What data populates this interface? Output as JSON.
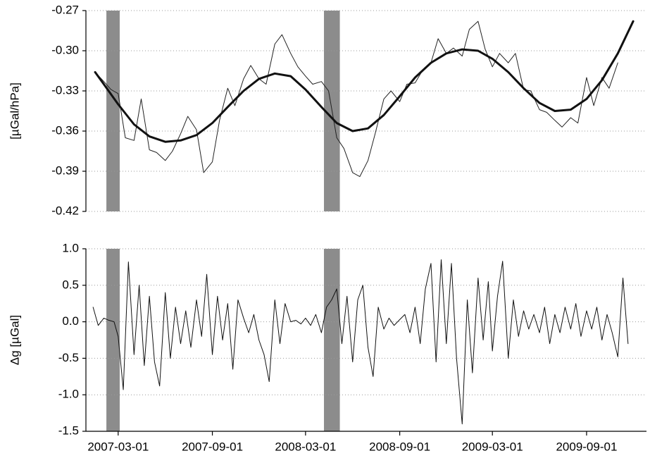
{
  "chart_data": [
    {
      "type": "line",
      "ylabel": "[µGal/hPa]",
      "xlim": [
        "2006-12-28",
        "2009-12-27"
      ],
      "ylim": [
        -0.42,
        -0.27
      ],
      "yticks": [
        -0.42,
        -0.39,
        -0.36,
        -0.33,
        {
          "value": -0.3,
          "label": "-0.30"
        },
        -0.27
      ],
      "grid": true,
      "shade_color": "#8c8c8c",
      "shaded_periods": [
        [
          "2007-02-06",
          "2007-03-04"
        ],
        [
          "2008-04-06",
          "2008-05-07"
        ]
      ],
      "series": [
        {
          "color": "#222222",
          "width": 1,
          "x": [
            "2007-01-15",
            "2007-02-01",
            "2007-02-15",
            "2007-03-01",
            "2007-03-15",
            "2007-04-01",
            "2007-04-15",
            "2007-05-01",
            "2007-05-15",
            "2007-06-01",
            "2007-06-15",
            "2007-07-01",
            "2007-07-15",
            "2007-08-01",
            "2007-08-15",
            "2007-09-01",
            "2007-09-15",
            "2007-10-01",
            "2007-10-15",
            "2007-11-01",
            "2007-11-15",
            "2007-12-01",
            "2007-12-15",
            "2008-01-01",
            "2008-01-15",
            "2008-02-01",
            "2008-02-15",
            "2008-03-01",
            "2008-03-15",
            "2008-04-01",
            "2008-04-15",
            "2008-05-01",
            "2008-05-15",
            "2008-06-01",
            "2008-06-15",
            "2008-07-01",
            "2008-07-15",
            "2008-08-01",
            "2008-08-15",
            "2008-09-01",
            "2008-09-15",
            "2008-10-01",
            "2008-10-15",
            "2008-11-01",
            "2008-11-15",
            "2008-12-01",
            "2008-12-15",
            "2009-01-01",
            "2009-01-15",
            "2009-02-01",
            "2009-02-15",
            "2009-03-01",
            "2009-03-15",
            "2009-04-01",
            "2009-04-15",
            "2009-05-01",
            "2009-05-15",
            "2009-06-01",
            "2009-06-15",
            "2009-07-01",
            "2009-07-15",
            "2009-08-01",
            "2009-08-15",
            "2009-09-01",
            "2009-09-15",
            "2009-10-01",
            "2009-10-15",
            "2009-11-01"
          ],
          "values": [
            -0.316,
            -0.323,
            -0.329,
            -0.332,
            -0.365,
            -0.367,
            -0.336,
            -0.374,
            -0.376,
            -0.382,
            -0.375,
            -0.362,
            -0.349,
            -0.359,
            -0.391,
            -0.383,
            -0.352,
            -0.328,
            -0.341,
            -0.321,
            -0.311,
            -0.321,
            -0.325,
            -0.295,
            -0.288,
            -0.302,
            -0.312,
            -0.319,
            -0.325,
            -0.323,
            -0.33,
            -0.365,
            -0.373,
            -0.391,
            -0.394,
            -0.382,
            -0.362,
            -0.336,
            -0.33,
            -0.338,
            -0.325,
            -0.324,
            -0.315,
            -0.309,
            -0.291,
            -0.302,
            -0.298,
            -0.304,
            -0.284,
            -0.278,
            -0.299,
            -0.312,
            -0.302,
            -0.309,
            -0.302,
            -0.329,
            -0.33,
            -0.344,
            -0.346,
            -0.352,
            -0.357,
            -0.35,
            -0.354,
            -0.32,
            -0.341,
            -0.32,
            -0.328,
            -0.309
          ]
        },
        {
          "color": "#111111",
          "width": 3,
          "x": [
            "2007-01-15",
            "2007-02-01",
            "2007-03-01",
            "2007-04-01",
            "2007-05-01",
            "2007-06-01",
            "2007-07-01",
            "2007-08-01",
            "2007-09-01",
            "2007-10-01",
            "2007-11-01",
            "2007-12-01",
            "2008-01-01",
            "2008-02-01",
            "2008-03-01",
            "2008-04-01",
            "2008-05-01",
            "2008-06-01",
            "2008-07-01",
            "2008-08-01",
            "2008-09-01",
            "2008-10-01",
            "2008-11-01",
            "2008-12-01",
            "2009-01-01",
            "2009-02-01",
            "2009-03-01",
            "2009-04-01",
            "2009-05-01",
            "2009-06-01",
            "2009-07-01",
            "2009-08-01",
            "2009-09-01",
            "2009-10-01",
            "2009-11-01",
            "2009-12-01"
          ],
          "values": [
            -0.316,
            -0.325,
            -0.34,
            -0.355,
            -0.364,
            -0.368,
            -0.367,
            -0.363,
            -0.354,
            -0.342,
            -0.33,
            -0.321,
            -0.317,
            -0.319,
            -0.329,
            -0.342,
            -0.354,
            -0.36,
            -0.358,
            -0.348,
            -0.334,
            -0.32,
            -0.309,
            -0.302,
            -0.299,
            -0.3,
            -0.306,
            -0.316,
            -0.328,
            -0.339,
            -0.345,
            -0.344,
            -0.336,
            -0.322,
            -0.302,
            -0.278
          ]
        }
      ]
    },
    {
      "type": "line",
      "ylabel": "Δg [µGal]",
      "xlim": [
        "2006-12-28",
        "2009-12-27"
      ],
      "xticks": [
        "2007-03-01",
        "2007-09-01",
        "2008-03-01",
        "2008-09-01",
        "2009-03-01",
        "2009-09-01"
      ],
      "ylim": [
        -1.5,
        1.0
      ],
      "yticks": [
        -1.5,
        {
          "value": -1,
          "label": "-1.0"
        },
        -0.5,
        {
          "value": 0,
          "label": "0.0"
        },
        0.5,
        {
          "value": 1,
          "label": "1.0"
        }
      ],
      "grid": true,
      "shade_color": "#8c8c8c",
      "shaded_periods": [
        [
          "2007-02-06",
          "2007-03-04"
        ],
        [
          "2008-04-06",
          "2008-05-07"
        ]
      ],
      "series": [
        {
          "color": "#111111",
          "width": 1,
          "x": [
            "2007-01-11",
            "2007-01-21",
            "2007-02-01",
            "2007-02-11",
            "2007-02-21",
            "2007-03-01",
            "2007-03-11",
            "2007-03-21",
            "2007-04-01",
            "2007-04-11",
            "2007-04-21",
            "2007-05-01",
            "2007-05-11",
            "2007-05-21",
            "2007-06-01",
            "2007-06-11",
            "2007-06-21",
            "2007-07-01",
            "2007-07-11",
            "2007-07-21",
            "2007-08-01",
            "2007-08-11",
            "2007-08-21",
            "2007-09-01",
            "2007-09-11",
            "2007-09-21",
            "2007-10-01",
            "2007-10-11",
            "2007-10-21",
            "2007-11-01",
            "2007-11-11",
            "2007-11-21",
            "2007-12-01",
            "2007-12-11",
            "2007-12-21",
            "2008-01-01",
            "2008-01-11",
            "2008-01-21",
            "2008-02-01",
            "2008-02-11",
            "2008-02-21",
            "2008-03-01",
            "2008-03-11",
            "2008-03-21",
            "2008-04-01",
            "2008-04-11",
            "2008-04-21",
            "2008-05-01",
            "2008-05-11",
            "2008-05-21",
            "2008-06-01",
            "2008-06-11",
            "2008-06-21",
            "2008-07-01",
            "2008-07-11",
            "2008-07-21",
            "2008-08-01",
            "2008-08-11",
            "2008-08-21",
            "2008-09-01",
            "2008-09-11",
            "2008-09-21",
            "2008-10-01",
            "2008-10-11",
            "2008-10-21",
            "2008-11-01",
            "2008-11-11",
            "2008-11-21",
            "2008-12-01",
            "2008-12-11",
            "2008-12-21",
            "2009-01-01",
            "2009-01-11",
            "2009-01-21",
            "2009-02-01",
            "2009-02-11",
            "2009-02-21",
            "2009-03-01",
            "2009-03-11",
            "2009-03-21",
            "2009-04-01",
            "2009-04-11",
            "2009-04-21",
            "2009-05-01",
            "2009-05-11",
            "2009-05-21",
            "2009-06-01",
            "2009-06-11",
            "2009-06-21",
            "2009-07-01",
            "2009-07-11",
            "2009-07-21",
            "2009-08-01",
            "2009-08-11",
            "2009-08-21",
            "2009-09-01",
            "2009-09-11",
            "2009-09-21",
            "2009-10-01",
            "2009-10-11",
            "2009-10-21",
            "2009-11-01",
            "2009-11-11",
            "2009-11-21"
          ],
          "values": [
            0.2,
            -0.05,
            0.05,
            0.02,
            0.0,
            -0.2,
            -0.93,
            0.82,
            -0.45,
            0.5,
            -0.6,
            0.35,
            -0.55,
            -0.88,
            0.4,
            -0.5,
            0.2,
            -0.3,
            0.15,
            -0.35,
            0.3,
            -0.2,
            0.65,
            -0.45,
            0.35,
            -0.25,
            0.25,
            -0.65,
            0.3,
            0.05,
            -0.15,
            0.1,
            -0.25,
            -0.45,
            -0.82,
            0.3,
            -0.3,
            0.25,
            0.0,
            0.02,
            -0.03,
            0.05,
            -0.05,
            0.1,
            -0.15,
            0.2,
            0.3,
            0.45,
            -0.3,
            0.35,
            -0.55,
            0.3,
            0.5,
            -0.35,
            -0.75,
            0.2,
            -0.1,
            0.05,
            -0.05,
            0.03,
            0.1,
            -0.15,
            0.2,
            -0.3,
            0.45,
            0.8,
            -0.55,
            0.85,
            -0.3,
            0.8,
            -0.5,
            -1.4,
            0.3,
            -0.7,
            0.6,
            -0.25,
            0.55,
            -0.4,
            0.35,
            0.83,
            -0.5,
            0.3,
            -0.2,
            0.15,
            -0.1,
            0.1,
            -0.15,
            0.2,
            -0.3,
            0.1,
            -0.15,
            0.2,
            -0.1,
            0.25,
            -0.2,
            0.15,
            -0.1,
            0.2,
            -0.25,
            0.1,
            -0.15,
            -0.48,
            0.6,
            -0.3
          ]
        }
      ]
    }
  ]
}
